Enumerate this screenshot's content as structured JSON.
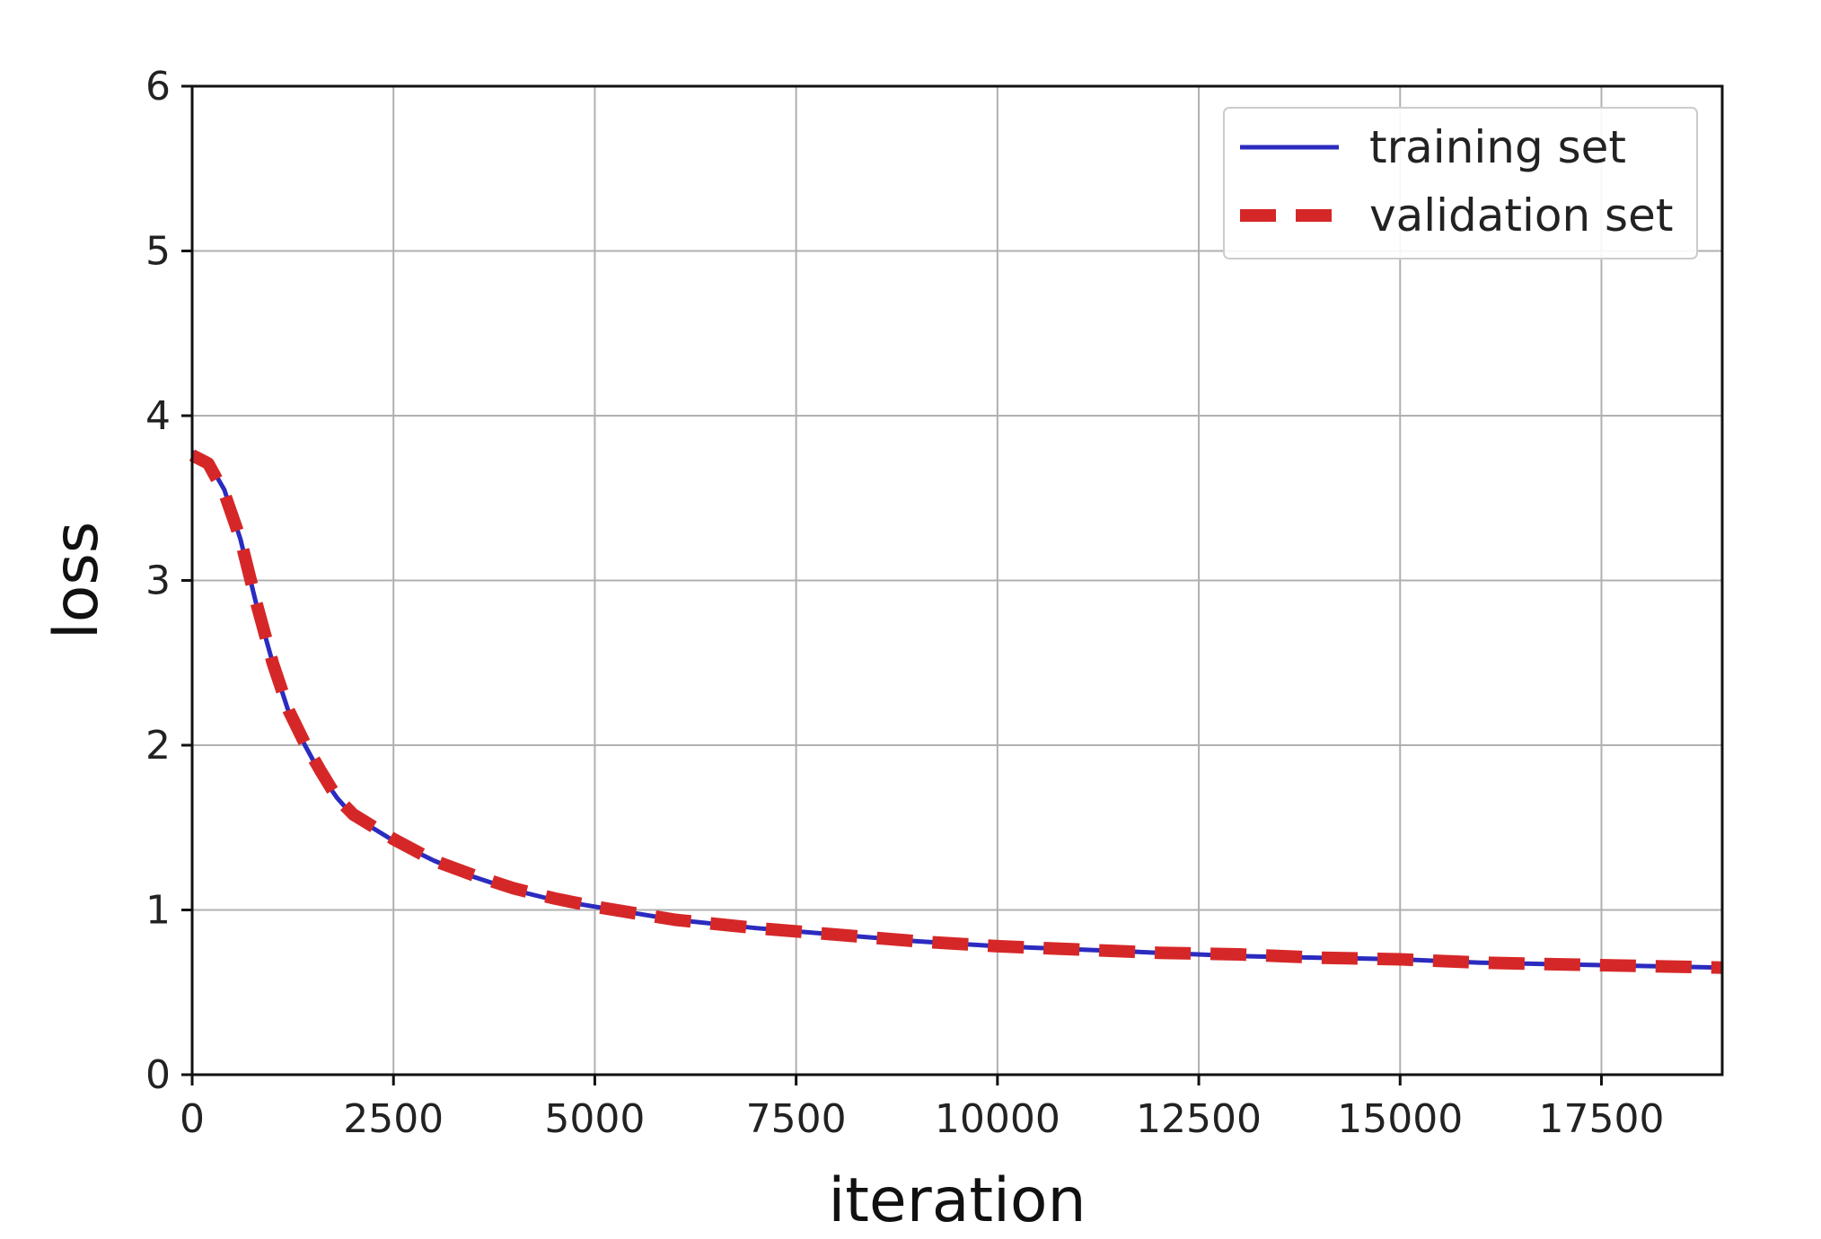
{
  "chart_data": {
    "type": "line",
    "title": "",
    "xlabel": "iteration",
    "ylabel": "loss",
    "xlim": [
      0,
      19000
    ],
    "ylim": [
      0,
      6
    ],
    "xticks": [
      0,
      2500,
      5000,
      7500,
      10000,
      12500,
      15000,
      17500
    ],
    "xtick_labels": [
      "0",
      "2500",
      "5000",
      "7500",
      "10000",
      "12500",
      "15000",
      "17500"
    ],
    "yticks": [
      0,
      1,
      2,
      3,
      4,
      5,
      6
    ],
    "ytick_labels": [
      "0",
      "1",
      "2",
      "3",
      "4",
      "5",
      "6"
    ],
    "grid": true,
    "legend_position": "top-right",
    "x": [
      0,
      200,
      400,
      600,
      800,
      1000,
      1200,
      1400,
      1600,
      1800,
      2000,
      2500,
      3000,
      3500,
      4000,
      4500,
      5000,
      5500,
      6000,
      7000,
      8000,
      9000,
      10000,
      11000,
      12000,
      13000,
      14000,
      15000,
      16000,
      17000,
      18000,
      19000
    ],
    "series": [
      {
        "name": "training set",
        "color": "#2b2bc0",
        "style": "solid",
        "values": [
          3.78,
          3.72,
          3.55,
          3.25,
          2.85,
          2.5,
          2.2,
          2.0,
          1.82,
          1.68,
          1.57,
          1.42,
          1.3,
          1.2,
          1.12,
          1.06,
          1.02,
          0.98,
          0.94,
          0.89,
          0.85,
          0.81,
          0.78,
          0.76,
          0.74,
          0.72,
          0.71,
          0.7,
          0.68,
          0.67,
          0.66,
          0.65
        ]
      },
      {
        "name": "validation set",
        "color": "#d62728",
        "style": "dashed",
        "values": [
          3.76,
          3.71,
          3.53,
          3.25,
          2.86,
          2.5,
          2.21,
          2.01,
          1.84,
          1.68,
          1.58,
          1.43,
          1.3,
          1.21,
          1.13,
          1.07,
          1.02,
          0.98,
          0.94,
          0.89,
          0.85,
          0.81,
          0.78,
          0.76,
          0.74,
          0.73,
          0.71,
          0.7,
          0.68,
          0.67,
          0.66,
          0.65
        ]
      }
    ]
  }
}
